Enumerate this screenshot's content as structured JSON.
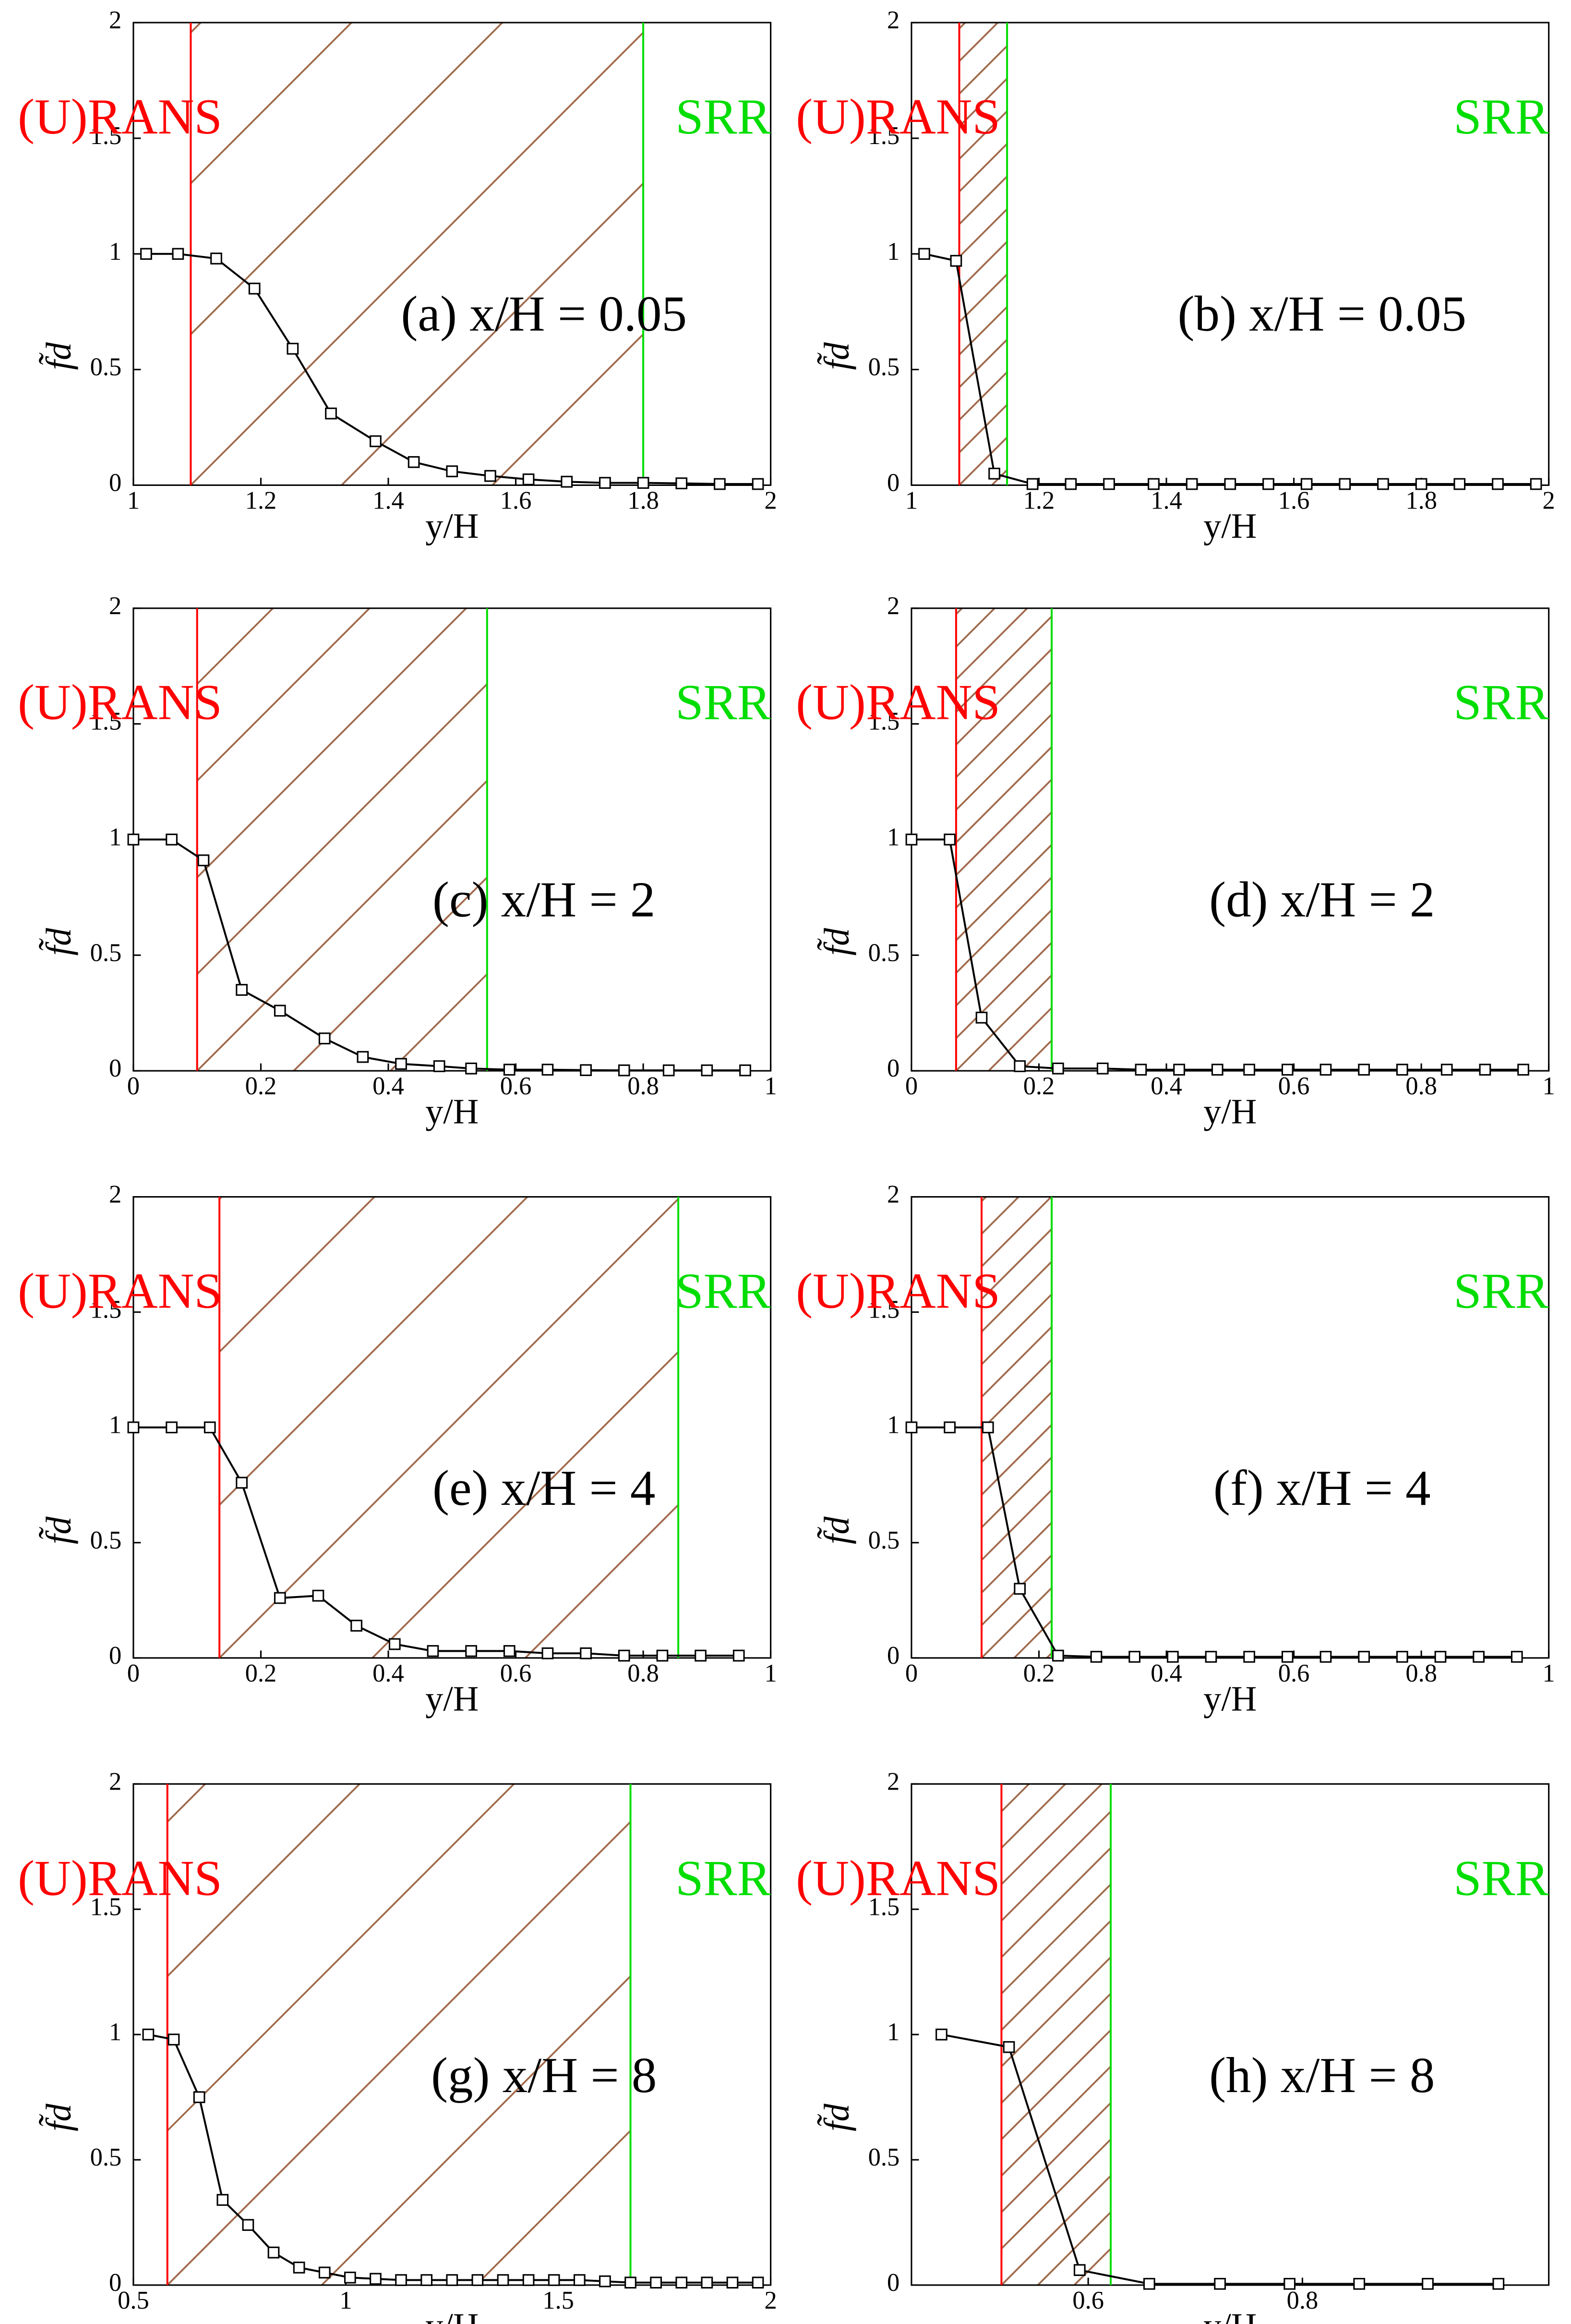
{
  "chart_data": [
    {
      "type": "line",
      "annotation": "(a) x/H = 0.05",
      "xlabel": "y/H",
      "ylabel": "f̃d",
      "region_labels": [
        {
          "text": "(U)RANS",
          "color": "#ff0000"
        },
        {
          "text": "SRR",
          "color": "#00dd00"
        }
      ],
      "vlines": [
        {
          "value": 1.09,
          "color": "#ff0000"
        },
        {
          "value": 1.8,
          "color": "#00dd00"
        }
      ],
      "hatch_color": "#a0694b",
      "x": [
        1.02,
        1.07,
        1.13,
        1.19,
        1.25,
        1.31,
        1.38,
        1.44,
        1.5,
        1.56,
        1.62,
        1.68,
        1.74,
        1.8,
        1.86,
        1.92,
        1.98
      ],
      "values": [
        1,
        1,
        0.98,
        0.85,
        0.59,
        0.31,
        0.19,
        0.1,
        0.06,
        0.04,
        0.025,
        0.015,
        0.01,
        0.01,
        0.008,
        0.005,
        0.005
      ],
      "color": "#000000",
      "marker": "square",
      "xlim": [
        1,
        2
      ],
      "xticks": [
        1,
        1.2,
        1.4,
        1.6,
        1.8,
        2
      ],
      "ylim": [
        0,
        2
      ],
      "yticks": [
        0,
        0.5,
        1,
        1.5,
        2
      ]
    },
    {
      "type": "line",
      "annotation": "(b) x/H = 0.05",
      "xlabel": "y/H",
      "ylabel": "f̃d",
      "region_labels": [
        {
          "text": "(U)RANS",
          "color": "#ff0000"
        },
        {
          "text": "SRR",
          "color": "#00dd00"
        }
      ],
      "vlines": [
        {
          "value": 1.075,
          "color": "#ff0000"
        },
        {
          "value": 1.15,
          "color": "#00dd00"
        }
      ],
      "hatch_color": "#a0694b",
      "x": [
        1.02,
        1.07,
        1.13,
        1.19,
        1.25,
        1.31,
        1.38,
        1.44,
        1.5,
        1.56,
        1.62,
        1.68,
        1.74,
        1.8,
        1.86,
        1.92,
        1.98
      ],
      "values": [
        1,
        0.97,
        0.05,
        0.005,
        0.005,
        0.005,
        0.005,
        0.005,
        0.005,
        0.005,
        0.005,
        0.005,
        0.005,
        0.005,
        0.005,
        0.005,
        0.005
      ],
      "color": "#000000",
      "marker": "square",
      "xlim": [
        1,
        2
      ],
      "xticks": [
        1,
        1.2,
        1.4,
        1.6,
        1.8,
        2
      ],
      "ylim": [
        0,
        2
      ],
      "yticks": [
        0,
        0.5,
        1,
        1.5,
        2
      ]
    },
    {
      "type": "line",
      "annotation": "(c) x/H = 2",
      "xlabel": "y/H",
      "ylabel": "f̃d",
      "region_labels": [
        {
          "text": "(U)RANS",
          "color": "#ff0000"
        },
        {
          "text": "SRR",
          "color": "#00dd00"
        }
      ],
      "vlines": [
        {
          "value": 0.1,
          "color": "#ff0000"
        },
        {
          "value": 0.555,
          "color": "#00dd00"
        }
      ],
      "hatch_color": "#a0694b",
      "x": [
        0,
        0.06,
        0.11,
        0.17,
        0.23,
        0.3,
        0.36,
        0.42,
        0.48,
        0.53,
        0.59,
        0.65,
        0.71,
        0.77,
        0.84,
        0.9,
        0.96
      ],
      "values": [
        1,
        1,
        0.91,
        0.35,
        0.26,
        0.14,
        0.06,
        0.03,
        0.02,
        0.01,
        0.005,
        0.005,
        0.003,
        0.002,
        0.002,
        0.002,
        0.002
      ],
      "color": "#000000",
      "marker": "square",
      "xlim": [
        0,
        1
      ],
      "xticks": [
        0,
        0.2,
        0.4,
        0.6,
        0.8,
        1
      ],
      "ylim": [
        0,
        2
      ],
      "yticks": [
        0,
        0.5,
        1,
        1.5,
        2
      ]
    },
    {
      "type": "line",
      "annotation": "(d) x/H = 2",
      "xlabel": "y/H",
      "ylabel": "f̃d",
      "region_labels": [
        {
          "text": "(U)RANS",
          "color": "#ff0000"
        },
        {
          "text": "SRR",
          "color": "#00dd00"
        }
      ],
      "vlines": [
        {
          "value": 0.07,
          "color": "#ff0000"
        },
        {
          "value": 0.22,
          "color": "#00dd00"
        }
      ],
      "hatch_color": "#a0694b",
      "x": [
        0,
        0.06,
        0.11,
        0.17,
        0.23,
        0.3,
        0.36,
        0.42,
        0.48,
        0.53,
        0.59,
        0.65,
        0.71,
        0.77,
        0.84,
        0.9,
        0.96
      ],
      "values": [
        1,
        1,
        0.23,
        0.02,
        0.01,
        0.01,
        0.005,
        0.005,
        0.005,
        0.005,
        0.005,
        0.005,
        0.005,
        0.005,
        0.005,
        0.005,
        0.005
      ],
      "color": "#000000",
      "marker": "square",
      "xlim": [
        0,
        1
      ],
      "xticks": [
        0,
        0.2,
        0.4,
        0.6,
        0.8,
        1
      ],
      "ylim": [
        0,
        2
      ],
      "yticks": [
        0,
        0.5,
        1,
        1.5,
        2
      ]
    },
    {
      "type": "line",
      "annotation": "(e) x/H = 4",
      "xlabel": "y/H",
      "ylabel": "f̃d",
      "region_labels": [
        {
          "text": "(U)RANS",
          "color": "#ff0000"
        },
        {
          "text": "SRR",
          "color": "#00dd00"
        }
      ],
      "vlines": [
        {
          "value": 0.135,
          "color": "#ff0000"
        },
        {
          "value": 0.855,
          "color": "#00dd00"
        }
      ],
      "hatch_color": "#a0694b",
      "x": [
        0,
        0.06,
        0.12,
        0.17,
        0.23,
        0.29,
        0.35,
        0.41,
        0.47,
        0.53,
        0.59,
        0.65,
        0.71,
        0.77,
        0.83,
        0.89,
        0.95
      ],
      "values": [
        1,
        1,
        1,
        0.76,
        0.26,
        0.27,
        0.14,
        0.06,
        0.03,
        0.03,
        0.03,
        0.02,
        0.02,
        0.01,
        0.01,
        0.01,
        0.01
      ],
      "color": "#000000",
      "marker": "square",
      "xlim": [
        0,
        1
      ],
      "xticks": [
        0,
        0.2,
        0.4,
        0.6,
        0.8,
        1
      ],
      "ylim": [
        0,
        2
      ],
      "yticks": [
        0,
        0.5,
        1,
        1.5,
        2
      ]
    },
    {
      "type": "line",
      "annotation": "(f) x/H = 4",
      "xlabel": "y/H",
      "ylabel": "f̃d",
      "region_labels": [
        {
          "text": "(U)RANS",
          "color": "#ff0000"
        },
        {
          "text": "SRR",
          "color": "#00dd00"
        }
      ],
      "vlines": [
        {
          "value": 0.11,
          "color": "#ff0000"
        },
        {
          "value": 0.22,
          "color": "#00dd00"
        }
      ],
      "hatch_color": "#a0694b",
      "x": [
        0,
        0.06,
        0.12,
        0.17,
        0.23,
        0.29,
        0.35,
        0.41,
        0.47,
        0.53,
        0.59,
        0.65,
        0.71,
        0.77,
        0.83,
        0.89,
        0.95
      ],
      "values": [
        1,
        1,
        1,
        0.3,
        0.01,
        0.005,
        0.005,
        0.005,
        0.005,
        0.005,
        0.005,
        0.005,
        0.005,
        0.005,
        0.005,
        0.005,
        0.005
      ],
      "color": "#000000",
      "marker": "square",
      "xlim": [
        0,
        1
      ],
      "xticks": [
        0,
        0.2,
        0.4,
        0.6,
        0.8,
        1
      ],
      "ylim": [
        0,
        2
      ],
      "yticks": [
        0,
        0.5,
        1,
        1.5,
        2
      ]
    },
    {
      "type": "line",
      "annotation": "(g) x/H = 8",
      "xlabel": "y/H",
      "ylabel": "f̃d",
      "region_labels": [
        {
          "text": "(U)RANS",
          "color": "#ff0000"
        },
        {
          "text": "SRR",
          "color": "#00dd00"
        }
      ],
      "vlines": [
        {
          "value": 0.58,
          "color": "#ff0000"
        },
        {
          "value": 1.67,
          "color": "#00dd00"
        }
      ],
      "hatch_color": "#a0694b",
      "x": [
        0.535,
        0.595,
        0.655,
        0.71,
        0.77,
        0.83,
        0.89,
        0.95,
        1.01,
        1.07,
        1.13,
        1.19,
        1.25,
        1.31,
        1.37,
        1.43,
        1.49,
        1.55,
        1.61,
        1.67,
        1.73,
        1.79,
        1.85,
        1.91,
        1.97
      ],
      "values": [
        1,
        0.98,
        0.75,
        0.34,
        0.24,
        0.13,
        0.07,
        0.05,
        0.03,
        0.025,
        0.02,
        0.02,
        0.02,
        0.02,
        0.02,
        0.02,
        0.02,
        0.02,
        0.015,
        0.01,
        0.01,
        0.01,
        0.01,
        0.01,
        0.01
      ],
      "color": "#000000",
      "marker": "square",
      "xlim": [
        0.5,
        2
      ],
      "xticks": [
        0.5,
        1,
        1.5,
        2
      ],
      "ylim": [
        0,
        2
      ],
      "yticks": [
        0,
        0.5,
        1,
        1.5,
        2
      ]
    },
    {
      "type": "line",
      "annotation": "(h) x/H = 8",
      "xlabel": "y/H",
      "ylabel": "f̃d",
      "region_labels": [
        {
          "text": "(U)RANS",
          "color": "#ff0000"
        },
        {
          "text": "SRR",
          "color": "#00dd00"
        }
      ],
      "vlines": [
        {
          "value": 0.519,
          "color": "#ff0000"
        },
        {
          "value": 0.621,
          "color": "#00dd00"
        }
      ],
      "hatch_color": "#a0694b",
      "x": [
        0.463,
        0.526,
        0.592,
        0.657,
        0.723,
        0.788,
        0.853,
        0.917,
        0.983
      ],
      "values": [
        1,
        0.95,
        0.06,
        0.005,
        0.005,
        0.005,
        0.005,
        0.005,
        0.005
      ],
      "color": "#000000",
      "marker": "square",
      "xlim": [
        0.435,
        1.03
      ],
      "xticks": [
        0.6,
        0.8
      ],
      "ylim": [
        0,
        2
      ],
      "yticks": [
        0,
        0.5,
        1,
        1.5,
        2
      ]
    }
  ]
}
